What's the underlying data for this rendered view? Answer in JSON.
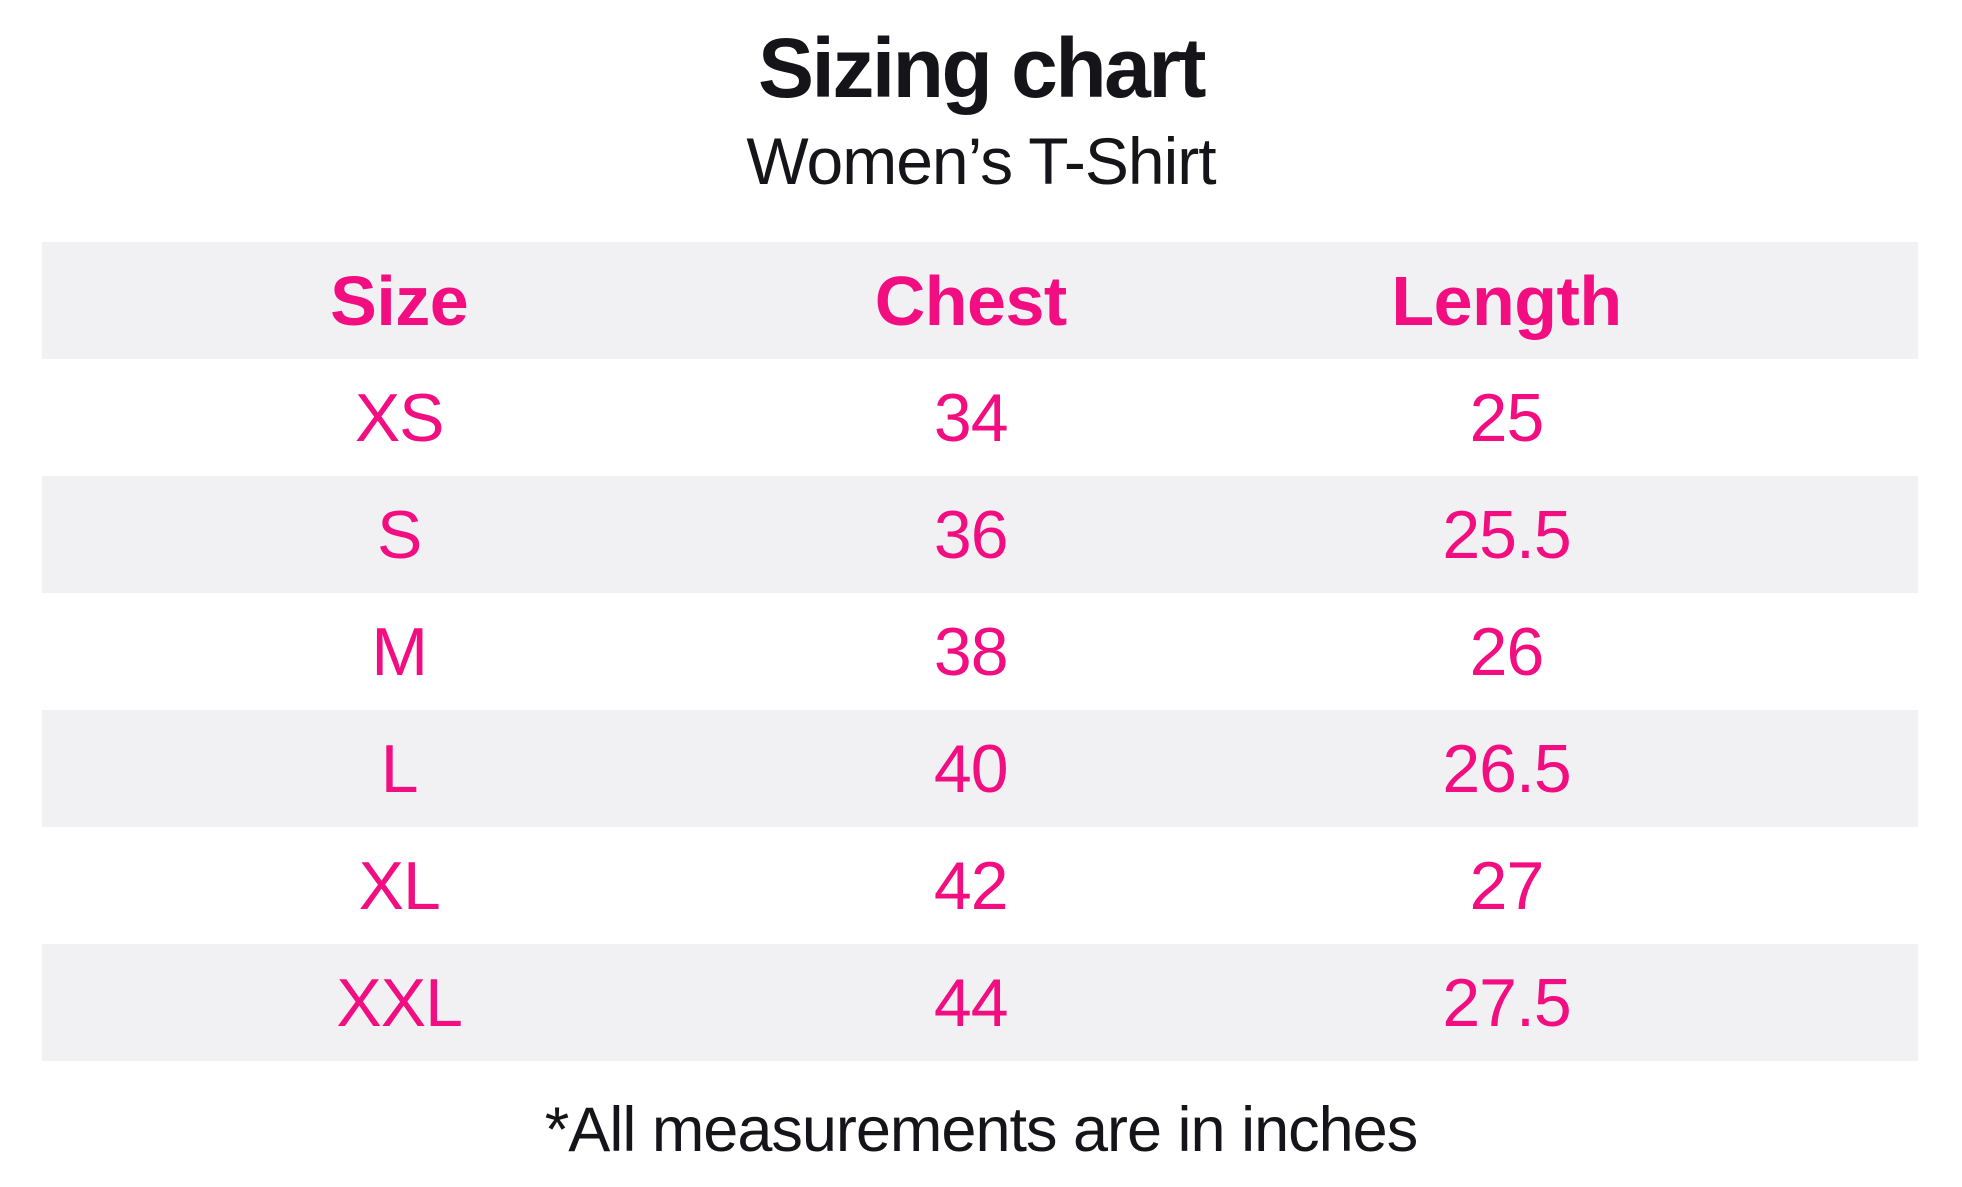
{
  "header": {
    "title": "Sizing chart",
    "subtitle": "Women’s T-Shirt"
  },
  "footnote": "*All measurements are in inches",
  "colors": {
    "accent_pink": "#F20D81",
    "stripe_gray": "#F1F1F3",
    "ink": "#151519"
  },
  "chart_data": {
    "type": "table",
    "title": "Sizing chart",
    "subtitle": "Women’s T-Shirt",
    "units": "inches",
    "columns": [
      "Size",
      "Chest",
      "Length"
    ],
    "rows": [
      [
        "XS",
        "34",
        "25"
      ],
      [
        "S",
        "36",
        "25.5"
      ],
      [
        "M",
        "38",
        "26"
      ],
      [
        "L",
        "40",
        "26.5"
      ],
      [
        "XL",
        "42",
        "27"
      ],
      [
        "XXL",
        "44",
        "27.5"
      ]
    ],
    "footnote": "*All measurements are in inches",
    "layout_hints": {
      "striped_rows": "header, S, L, XXL",
      "text_alignment": "center",
      "grid": "off",
      "borders": "none"
    }
  }
}
